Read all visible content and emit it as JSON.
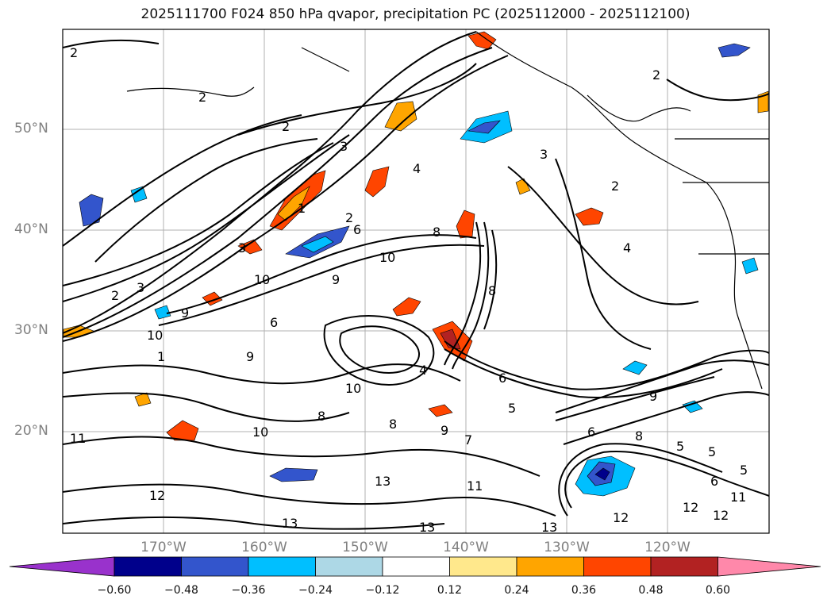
{
  "title": "2025111700 F024 850 hPa qvapor, precipitation PC (2025112000 - 2025112100)",
  "lat_labels": [
    "50°N",
    "40°N",
    "30°N",
    "20°N"
  ],
  "lon_labels": [
    "170°W",
    "160°W",
    "150°W",
    "140°W",
    "130°W",
    "120°W"
  ],
  "colorbar": {
    "ticks": [
      "−0.60",
      "−0.48",
      "−0.36",
      "−0.24",
      "−0.12",
      "0.12",
      "0.24",
      "0.36",
      "0.48",
      "0.60"
    ],
    "colors": [
      "#9932cc",
      "#00008b",
      "#3355cc",
      "#00bfff",
      "#add8e6",
      "#ffffff",
      "#ffe88c",
      "#ffa500",
      "#ff4500",
      "#b22222",
      "#ff88aa"
    ]
  },
  "contour_labels": [
    "2",
    "2",
    "2",
    "3",
    "1",
    "2",
    "3",
    "3",
    "2",
    "6",
    "8",
    "10",
    "10",
    "9",
    "9",
    "10",
    "9",
    "6",
    "8",
    "10",
    "8",
    "10",
    "9",
    "7",
    "8",
    "13",
    "12",
    "13",
    "13",
    "11",
    "11",
    "2",
    "2",
    "4",
    "4",
    "6",
    "5",
    "6",
    "9",
    "8",
    "5",
    "5",
    "5",
    "6",
    "12",
    "12",
    "12",
    "11",
    "13",
    "3",
    "1",
    "4"
  ],
  "colors": {
    "land_outline": "#000000",
    "grid": "#b0b0b0",
    "contour": "#000000"
  }
}
